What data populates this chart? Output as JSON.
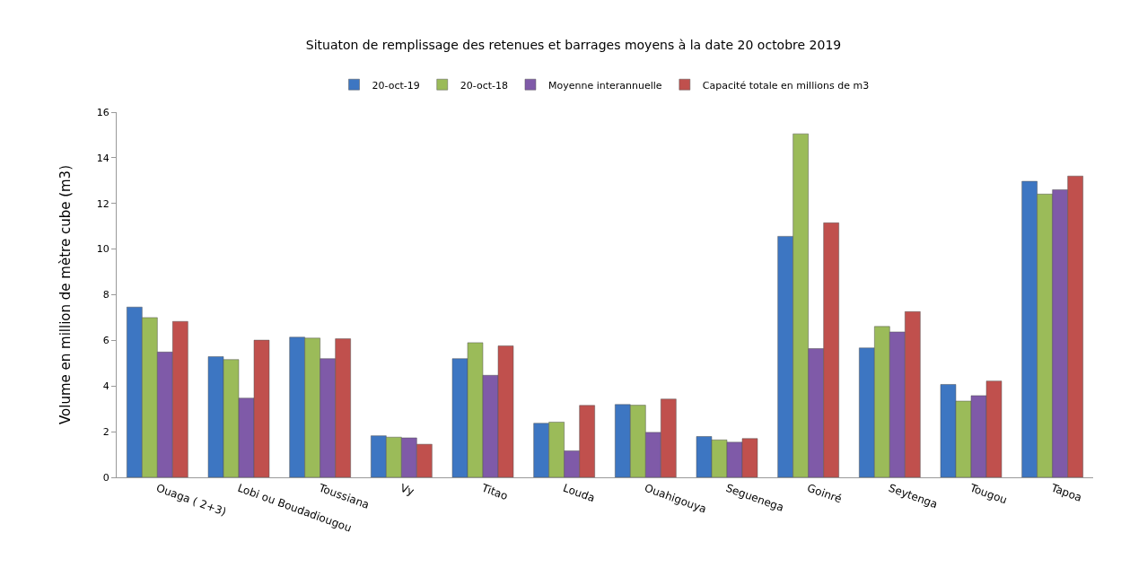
{
  "chart_data": {
    "type": "bar",
    "title": "Situaton de remplissage des retenues et barrages moyens à la date 20 octobre 2019",
    "ylabel": "Volume en million de mètre cube (m3)",
    "categories": [
      "Ouaga ( 2+3)",
      "Lobi ou Boudadiougou",
      "Toussiana",
      "Vy",
      "Titao",
      "Louda",
      "Ouahigouya",
      "Seguenega",
      "Goinré",
      "Seytenga",
      "Tougou",
      "Tapoa"
    ],
    "series": [
      {
        "name": "20-oct-19",
        "color": "#3d76c2",
        "values": [
          7.46,
          5.29,
          6.14,
          1.82,
          5.2,
          2.37,
          3.19,
          1.79,
          10.56,
          5.67,
          4.07,
          12.97
        ]
      },
      {
        "name": "20-oct-18",
        "color": "#9bbb59",
        "values": [
          7.0,
          5.16,
          6.1,
          1.76,
          5.9,
          2.42,
          3.16,
          1.64,
          15.05,
          6.61,
          3.34,
          12.41
        ]
      },
      {
        "name": "Moyenne interannuelle",
        "color": "#7f5aa8",
        "values": [
          5.49,
          3.47,
          5.2,
          1.73,
          4.47,
          1.16,
          1.97,
          1.54,
          5.64,
          6.37,
          3.58,
          12.6
        ]
      },
      {
        "name": "Capacité totale en millions de m3",
        "color": "#c0504d",
        "values": [
          6.83,
          6.01,
          6.07,
          1.45,
          5.76,
          3.15,
          3.43,
          1.7,
          11.15,
          7.26,
          4.22,
          13.2
        ]
      }
    ],
    "ylim": [
      0,
      16
    ],
    "yticks": [
      0,
      2,
      4,
      6,
      8,
      10,
      12,
      14,
      16
    ],
    "grid": false,
    "legend": "top"
  }
}
